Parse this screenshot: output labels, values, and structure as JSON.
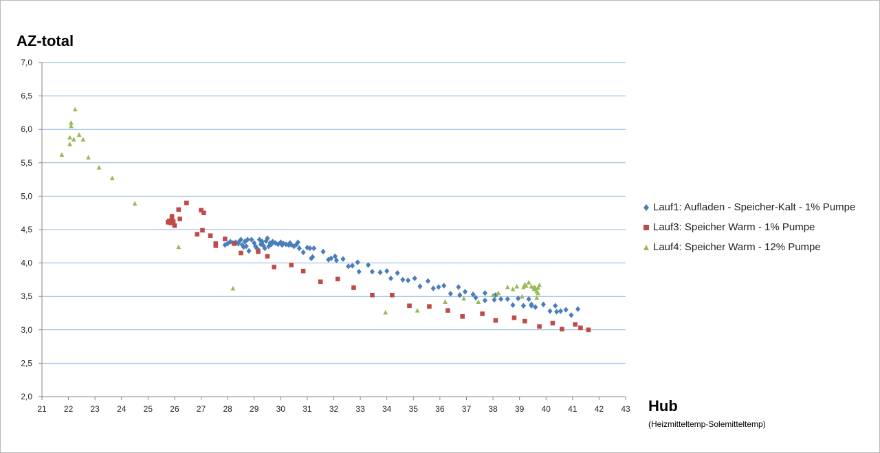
{
  "chart_data": {
    "type": "scatter",
    "ylabel": "AZ-total",
    "xlabel": "Hub",
    "xlabel_sub": "(Heizmitteltemp-Solemitteltemp)",
    "xlim": [
      21,
      43
    ],
    "ylim": [
      2.0,
      7.0
    ],
    "x_ticks": [
      "21",
      "22",
      "23",
      "24",
      "25",
      "26",
      "27",
      "28",
      "29",
      "30",
      "31",
      "32",
      "33",
      "34",
      "35",
      "36",
      "37",
      "38",
      "39",
      "40",
      "41",
      "42",
      "43"
    ],
    "y_ticks": [
      "2,0",
      "2,5",
      "3,0",
      "3,5",
      "4,0",
      "4,5",
      "5,0",
      "5,5",
      "6,0",
      "6,5",
      "7,0"
    ],
    "grid": "horizontal",
    "legend_position": "right",
    "series": [
      {
        "name": "Lauf1: Aufladen - Speicher-Kalt - 1% Pumpe",
        "color": "#4a7ebb",
        "marker": "diamond",
        "points": [
          [
            27.9,
            4.27
          ],
          [
            28.0,
            4.29
          ],
          [
            28.1,
            4.32
          ],
          [
            28.2,
            4.3
          ],
          [
            28.3,
            4.31
          ],
          [
            28.4,
            4.29
          ],
          [
            28.45,
            4.33
          ],
          [
            28.5,
            4.35
          ],
          [
            28.55,
            4.27
          ],
          [
            28.6,
            4.24
          ],
          [
            28.65,
            4.32
          ],
          [
            28.7,
            4.25
          ],
          [
            28.75,
            4.35
          ],
          [
            28.8,
            4.18
          ],
          [
            28.9,
            4.35
          ],
          [
            29.0,
            4.3
          ],
          [
            29.05,
            4.25
          ],
          [
            29.1,
            4.22
          ],
          [
            29.15,
            4.2
          ],
          [
            29.2,
            4.35
          ],
          [
            29.25,
            4.28
          ],
          [
            29.3,
            4.32
          ],
          [
            29.35,
            4.26
          ],
          [
            29.4,
            4.22
          ],
          [
            29.45,
            4.33
          ],
          [
            29.5,
            4.37
          ],
          [
            29.55,
            4.25
          ],
          [
            29.6,
            4.3
          ],
          [
            29.65,
            4.28
          ],
          [
            29.7,
            4.32
          ],
          [
            29.8,
            4.3
          ],
          [
            29.9,
            4.28
          ],
          [
            30.0,
            4.31
          ],
          [
            30.05,
            4.27
          ],
          [
            30.1,
            4.29
          ],
          [
            30.2,
            4.28
          ],
          [
            30.3,
            4.27
          ],
          [
            30.35,
            4.3
          ],
          [
            30.4,
            4.27
          ],
          [
            30.5,
            4.25
          ],
          [
            30.6,
            4.28
          ],
          [
            30.65,
            4.31
          ],
          [
            30.7,
            4.22
          ],
          [
            30.85,
            4.16
          ],
          [
            31.0,
            4.23
          ],
          [
            31.1,
            4.22
          ],
          [
            31.15,
            4.07
          ],
          [
            31.2,
            4.09
          ],
          [
            31.25,
            4.22
          ],
          [
            31.6,
            4.17
          ],
          [
            31.8,
            4.05
          ],
          [
            31.9,
            4.07
          ],
          [
            32.05,
            4.1
          ],
          [
            32.1,
            4.04
          ],
          [
            32.35,
            4.06
          ],
          [
            32.55,
            3.95
          ],
          [
            32.7,
            3.96
          ],
          [
            32.9,
            4.01
          ],
          [
            32.95,
            3.87
          ],
          [
            33.3,
            3.97
          ],
          [
            33.45,
            3.87
          ],
          [
            33.75,
            3.86
          ],
          [
            34.0,
            3.88
          ],
          [
            34.15,
            3.77
          ],
          [
            34.4,
            3.85
          ],
          [
            34.6,
            3.75
          ],
          [
            34.8,
            3.74
          ],
          [
            35.05,
            3.77
          ],
          [
            35.25,
            3.65
          ],
          [
            35.55,
            3.73
          ],
          [
            35.75,
            3.62
          ],
          [
            35.95,
            3.64
          ],
          [
            36.15,
            3.66
          ],
          [
            36.4,
            3.54
          ],
          [
            36.7,
            3.64
          ],
          [
            36.75,
            3.52
          ],
          [
            36.95,
            3.57
          ],
          [
            37.25,
            3.53
          ],
          [
            37.35,
            3.48
          ],
          [
            37.7,
            3.55
          ],
          [
            37.7,
            3.44
          ],
          [
            38.05,
            3.45
          ],
          [
            38.1,
            3.52
          ],
          [
            38.3,
            3.46
          ],
          [
            38.55,
            3.46
          ],
          [
            38.75,
            3.37
          ],
          [
            38.95,
            3.47
          ],
          [
            39.15,
            3.36
          ],
          [
            39.35,
            3.46
          ],
          [
            39.45,
            3.38
          ],
          [
            39.45,
            3.36
          ],
          [
            39.6,
            3.34
          ],
          [
            39.9,
            3.38
          ],
          [
            40.15,
            3.28
          ],
          [
            40.35,
            3.36
          ],
          [
            40.4,
            3.27
          ],
          [
            40.55,
            3.28
          ],
          [
            40.75,
            3.3
          ],
          [
            40.95,
            3.22
          ],
          [
            41.2,
            3.31
          ]
        ]
      },
      {
        "name": "Lauf3: Speicher Warm - 1% Pumpe",
        "color": "#be4b48",
        "marker": "square",
        "points": [
          [
            25.75,
            4.61
          ],
          [
            25.8,
            4.63
          ],
          [
            25.85,
            4.6
          ],
          [
            25.9,
            4.67
          ],
          [
            25.9,
            4.7
          ],
          [
            25.95,
            4.62
          ],
          [
            26.0,
            4.56
          ],
          [
            26.15,
            4.8
          ],
          [
            26.2,
            4.66
          ],
          [
            26.45,
            4.9
          ],
          [
            26.85,
            4.43
          ],
          [
            27.0,
            4.79
          ],
          [
            27.05,
            4.49
          ],
          [
            27.1,
            4.75
          ],
          [
            27.35,
            4.41
          ],
          [
            27.55,
            4.29
          ],
          [
            27.55,
            4.26
          ],
          [
            27.9,
            4.36
          ],
          [
            28.25,
            4.29
          ],
          [
            28.5,
            4.15
          ],
          [
            29.15,
            4.17
          ],
          [
            29.5,
            4.1
          ],
          [
            29.75,
            3.94
          ],
          [
            30.4,
            3.97
          ],
          [
            30.85,
            3.88
          ],
          [
            31.5,
            3.72
          ],
          [
            32.15,
            3.76
          ],
          [
            32.75,
            3.63
          ],
          [
            33.45,
            3.52
          ],
          [
            34.2,
            3.52
          ],
          [
            34.85,
            3.36
          ],
          [
            35.6,
            3.35
          ],
          [
            36.3,
            3.29
          ],
          [
            36.85,
            3.2
          ],
          [
            37.6,
            3.24
          ],
          [
            38.1,
            3.14
          ],
          [
            38.8,
            3.18
          ],
          [
            39.2,
            3.13
          ],
          [
            39.75,
            3.05
          ],
          [
            40.25,
            3.1
          ],
          [
            40.6,
            3.01
          ],
          [
            41.1,
            3.08
          ],
          [
            41.3,
            3.03
          ],
          [
            41.6,
            3.0
          ]
        ]
      },
      {
        "name": "Lauf4: Speicher Warm - 12% Pumpe",
        "color": "#98b954",
        "marker": "triangle",
        "points": [
          [
            21.75,
            5.62
          ],
          [
            22.05,
            5.78
          ],
          [
            22.05,
            5.88
          ],
          [
            22.1,
            6.05
          ],
          [
            22.1,
            6.1
          ],
          [
            22.2,
            5.85
          ],
          [
            22.25,
            6.3
          ],
          [
            22.4,
            5.92
          ],
          [
            22.55,
            5.85
          ],
          [
            22.75,
            5.58
          ],
          [
            23.15,
            5.43
          ],
          [
            23.65,
            5.27
          ],
          [
            24.5,
            4.89
          ],
          [
            26.15,
            4.24
          ],
          [
            28.2,
            3.62
          ],
          [
            33.95,
            3.26
          ],
          [
            35.15,
            3.29
          ],
          [
            36.2,
            3.42
          ],
          [
            36.9,
            3.47
          ],
          [
            37.45,
            3.42
          ],
          [
            38.0,
            3.52
          ],
          [
            38.2,
            3.55
          ],
          [
            38.55,
            3.64
          ],
          [
            38.75,
            3.61
          ],
          [
            38.9,
            3.65
          ],
          [
            39.1,
            3.5
          ],
          [
            39.15,
            3.64
          ],
          [
            39.2,
            3.68
          ],
          [
            39.25,
            3.66
          ],
          [
            39.35,
            3.71
          ],
          [
            39.45,
            3.65
          ],
          [
            39.55,
            3.61
          ],
          [
            39.55,
            3.64
          ],
          [
            39.6,
            3.63
          ],
          [
            39.65,
            3.48
          ],
          [
            39.65,
            3.58
          ],
          [
            39.7,
            3.55
          ],
          [
            39.7,
            3.63
          ],
          [
            39.75,
            3.67
          ]
        ]
      }
    ]
  }
}
